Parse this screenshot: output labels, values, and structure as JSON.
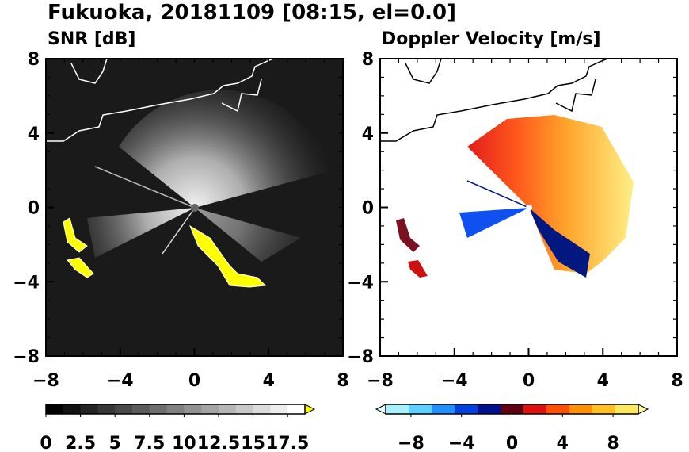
{
  "title": "Fukuoka, 20181109 [08:15, el=0.0]",
  "chart_data": [
    {
      "type": "heatmap",
      "title": "SNR [dB]",
      "xlim": [
        -8,
        8
      ],
      "ylim": [
        -8,
        8
      ],
      "x_ticks": [
        -8,
        -4,
        0,
        4,
        8
      ],
      "y_ticks": [
        8,
        4,
        0,
        -4,
        -8
      ],
      "x_tick_labels": [
        "−8",
        "−4",
        "0",
        "4",
        "8"
      ],
      "y_tick_labels": [
        "8",
        "4",
        "0",
        "−4",
        "−8"
      ],
      "colorbar": {
        "min": 0,
        "max": 18.75,
        "extend": "max",
        "tick_values": [
          0,
          2.5,
          5,
          7.5,
          10,
          12.5,
          15,
          17.5
        ],
        "tick_labels": [
          "0",
          "2.5",
          "5",
          "7.5",
          "10",
          "12.5",
          "15",
          "17.5"
        ],
        "colors_start": "#000000",
        "colors_end": "#ffffff",
        "extend_color": "#ffff00"
      },
      "background_color": "#1a1a1a",
      "coastline_color": "#ffffff",
      "high_value_color": "#ffff00"
    },
    {
      "type": "heatmap",
      "title": "Doppler Velocity [m/s]",
      "xlim": [
        -8,
        8
      ],
      "ylim": [
        -8,
        8
      ],
      "x_ticks": [
        -8,
        -4,
        0,
        4,
        8
      ],
      "y_ticks": [
        8,
        4,
        0,
        -4,
        -8
      ],
      "x_tick_labels": [
        "−8",
        "−4",
        "0",
        "4",
        "8"
      ],
      "y_tick_labels": [
        "8",
        "4",
        "0",
        "−4",
        "−8"
      ],
      "colorbar": {
        "min": -10,
        "max": 10,
        "extend": "both",
        "tick_values": [
          -8,
          -4,
          0,
          4,
          8
        ],
        "tick_labels": [
          "−8",
          "−4",
          "0",
          "4",
          "8"
        ],
        "colors": [
          "#e6ffff",
          "#a8f0ff",
          "#60d0ff",
          "#2090ff",
          "#0040e0",
          "#001090",
          "#600010",
          "#e01010",
          "#ff5000",
          "#ff9000",
          "#ffc020",
          "#ffe860",
          "#ffffa0"
        ]
      },
      "background_color": "#ffffff",
      "coastline_color": "#000000"
    }
  ]
}
